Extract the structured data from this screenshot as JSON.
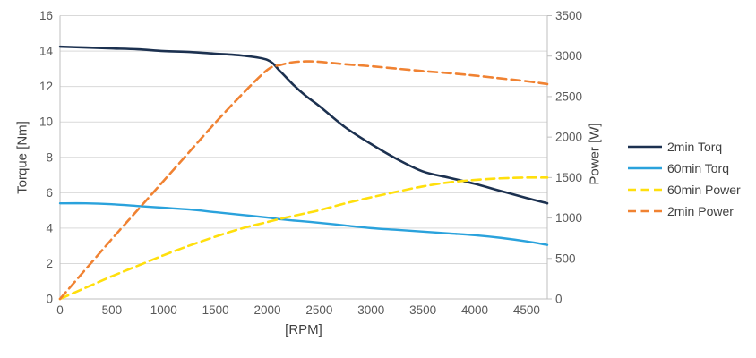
{
  "colors": {
    "background": "#FFFFFF",
    "gridline": "#D9D9D9",
    "axis_line": "#BFBFBF",
    "tick_label": "#595959",
    "axis_title": "#404040",
    "legend_text": "#404040"
  },
  "chart_data": {
    "type": "line",
    "title": "",
    "grid": "horizontal",
    "legend_position": "right",
    "x_axis": {
      "label": "[RPM]",
      "min": 0,
      "max": 4700,
      "ticks": [
        0,
        500,
        1000,
        1500,
        2000,
        2500,
        3000,
        3500,
        4000,
        4500
      ]
    },
    "left_axis": {
      "label": "Torque [Nm]",
      "min": 0,
      "max": 16,
      "ticks": [
        0,
        2,
        4,
        6,
        8,
        10,
        12,
        14,
        16
      ]
    },
    "right_axis": {
      "label": "Power [W]",
      "min": 0,
      "max": 3500,
      "ticks": [
        0,
        500,
        1000,
        1500,
        2000,
        2500,
        3000,
        3500
      ]
    },
    "x": [
      0,
      250,
      500,
      750,
      1000,
      1250,
      1500,
      1750,
      2000,
      2125,
      2250,
      2375,
      2500,
      2750,
      3000,
      3250,
      3500,
      3750,
      4000,
      4250,
      4500,
      4700
    ],
    "series": [
      {
        "name": "2min Torq",
        "axis": "left",
        "style": "solid",
        "color": "#1C3150",
        "width": 2.6,
        "values": [
          14.25,
          14.2,
          14.15,
          14.1,
          14.0,
          13.95,
          13.85,
          13.75,
          13.5,
          12.85,
          12.1,
          11.45,
          10.9,
          9.7,
          8.75,
          7.9,
          7.2,
          6.85,
          6.5,
          6.1,
          5.7,
          5.4
        ]
      },
      {
        "name": "60min Torq",
        "axis": "left",
        "style": "solid",
        "color": "#2AA2DC",
        "width": 2.4,
        "values": [
          5.4,
          5.4,
          5.35,
          5.25,
          5.15,
          5.05,
          4.9,
          4.75,
          4.6,
          4.5,
          4.43,
          4.37,
          4.3,
          4.15,
          4.0,
          3.9,
          3.8,
          3.7,
          3.6,
          3.45,
          3.25,
          3.05
        ]
      },
      {
        "name": "60min Power",
        "axis": "right",
        "style": "dashed",
        "color": "#FFDF0D",
        "width": 2.6,
        "values": [
          0,
          140,
          280,
          410,
          540,
          660,
          770,
          870,
          950,
          990,
          1025,
          1060,
          1095,
          1180,
          1255,
          1325,
          1390,
          1440,
          1470,
          1490,
          1500,
          1500
        ]
      },
      {
        "name": "2min Power",
        "axis": "right",
        "style": "dashed",
        "color": "#F08232",
        "width": 2.6,
        "values": [
          0,
          370,
          740,
          1100,
          1460,
          1820,
          2180,
          2520,
          2830,
          2890,
          2925,
          2935,
          2930,
          2900,
          2875,
          2845,
          2815,
          2790,
          2760,
          2725,
          2690,
          2655
        ]
      }
    ]
  }
}
